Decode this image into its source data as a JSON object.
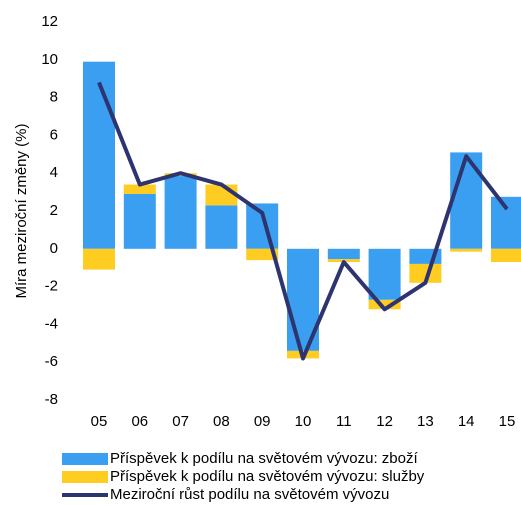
{
  "chart_data": {
    "type": "bar",
    "y_label": "Míra meziroční změny (%)",
    "categories": [
      "05",
      "06",
      "07",
      "08",
      "09",
      "10",
      "11",
      "12",
      "13",
      "14",
      "15"
    ],
    "series": [
      {
        "name": "Příspěvek k podílu na světovém vývozu: zboží",
        "color": "#3a9ff0",
        "type": "bar",
        "values": [
          9.9,
          2.9,
          3.85,
          2.3,
          2.4,
          -5.4,
          -0.55,
          -2.7,
          -0.8,
          5.1,
          2.75
        ]
      },
      {
        "name": "Příspěvek k podílu na světovém vývozu: služby",
        "color": "#ffcc22",
        "type": "bar",
        "values": [
          -1.1,
          0.5,
          0.15,
          1.1,
          -0.6,
          -0.4,
          -0.15,
          -0.5,
          -1.0,
          -0.15,
          -0.7
        ]
      },
      {
        "name": "Meziroční růst podílu na světovém vývozu",
        "color": "#2e3470",
        "type": "line",
        "values": [
          8.8,
          3.4,
          4.0,
          3.4,
          1.9,
          -5.8,
          -0.7,
          -3.2,
          -1.8,
          4.9,
          2.1
        ]
      }
    ],
    "stacked": true,
    "ylim": [
      -8,
      12
    ],
    "yticks": [
      -8,
      -6,
      -4,
      -2,
      0,
      2,
      4,
      6,
      8,
      10,
      12
    ]
  }
}
